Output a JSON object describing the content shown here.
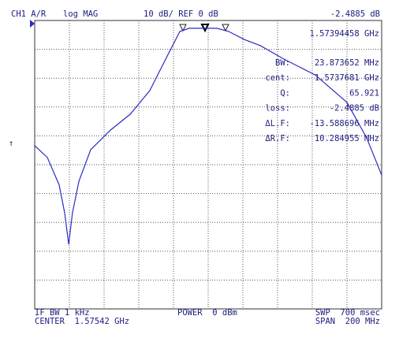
{
  "chart_data": {
    "type": "line",
    "x": [
      1475.4,
      1482.7,
      1489.5,
      1492.7,
      1495.0,
      1497.2,
      1500.9,
      1507.7,
      1519.1,
      1530.5,
      1541.8,
      1550.9,
      1559.1,
      1564.5,
      1574.5,
      1580.4,
      1587.2,
      1596.3,
      1605.4,
      1619.1,
      1637.2,
      1655.4,
      1666.8,
      1675.4
    ],
    "series": [
      {
        "color": "#2b2bc4",
        "values": [
          -43.4,
          -47.5,
          -57.0,
          -66.7,
          -77.6,
          -66.7,
          -55.7,
          -44.8,
          -38.0,
          -32.5,
          -24.3,
          -13.4,
          -3.8,
          -2.7,
          -2.7,
          -2.7,
          -3.8,
          -6.6,
          -8.7,
          -13.4,
          -18.9,
          -28.4,
          -40.7,
          -53.6
        ]
      }
    ],
    "xlim": [
      1475.42,
      1675.42
    ],
    "ylim": [
      -100,
      0
    ]
  },
  "header": {
    "channel": "CH1 A/R",
    "format": "log MAG",
    "scale": "10 dB/ REF 0 dB",
    "marker_value": "-2.4885 dB"
  },
  "marker_freq": "1.57394458 GHz",
  "stats": [
    [
      "BW:",
      "23.873652 MHz"
    ],
    [
      "cent:",
      "1.5737681 GHz"
    ],
    [
      "Q:",
      "65.921"
    ],
    [
      "loss:",
      "-2.4885 dB"
    ],
    [
      "ΔL.F:",
      "-13.588696 MHz"
    ],
    [
      "ΔR.F:",
      "10.284955 MHz"
    ]
  ],
  "footer": {
    "ifbw": "IF BW 1 kHz",
    "center": "CENTER  1.57542 GHz",
    "power": "POWER  0 dBm",
    "sweep": "SWP  700 msec",
    "span": "SPAN  200 MHz"
  }
}
